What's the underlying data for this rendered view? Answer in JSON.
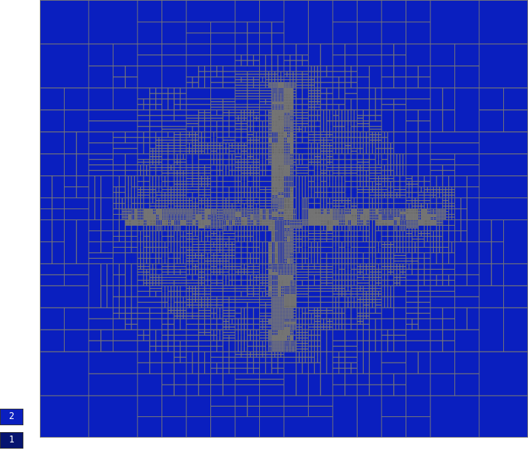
{
  "mesh": {
    "fill_color": "#0a1fbf",
    "grid_color": "#777777",
    "dense_color": "#6a6a6a"
  },
  "legend": {
    "items": [
      {
        "label": "2",
        "color": "#0a1fbf"
      },
      {
        "label": "1",
        "color": "#061470"
      }
    ]
  }
}
